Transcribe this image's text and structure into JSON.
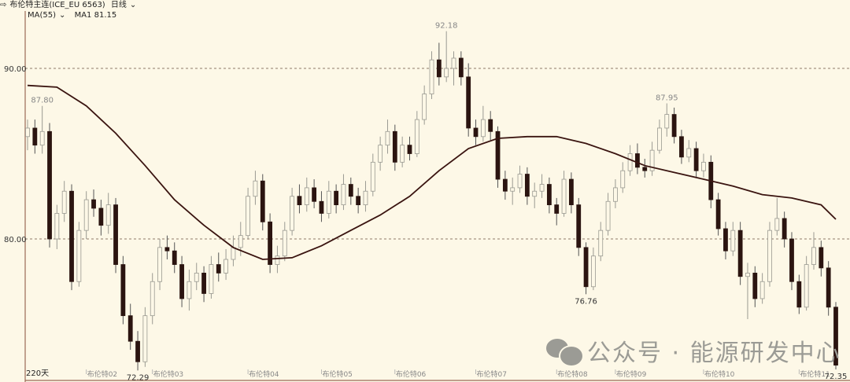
{
  "header": {
    "icon": "arrow-right-icon",
    "symbol": "布伦特主连(ICE_EU 6563)",
    "period": "日线",
    "period_icon": "chevron-down-icon"
  },
  "indicator": {
    "name": "MA(55)",
    "icon": "chevron-down-icon",
    "value_label": "MA1 81.15"
  },
  "watermark": {
    "icon": "wechat-icon",
    "text": "公众号 · 能源研发中心"
  },
  "colors": {
    "background": "#fdf8e7",
    "down": "#2b1410",
    "up_outline": "#9a9a92",
    "ma": "#3a1410",
    "axis": "#9a6a55",
    "grid": "#6b5040"
  },
  "chart_data": {
    "type": "candlestick",
    "period_label": "220天",
    "ylim": [
      71.8,
      93
    ],
    "y_ticks": [
      {
        "value": 90,
        "label": "90.00"
      },
      {
        "value": 80,
        "label": "80.00"
      }
    ],
    "grid": "dashed horizontal at y ticks",
    "x_ticks": [
      {
        "index": 8,
        "label": "布伦特02"
      },
      {
        "index": 17,
        "label": "布伦特03"
      },
      {
        "index": 30,
        "label": "布伦特04"
      },
      {
        "index": 40,
        "label": "布伦特05"
      },
      {
        "index": 50,
        "label": "布伦特06"
      },
      {
        "index": 61,
        "label": "布伦特07"
      },
      {
        "index": 72,
        "label": "布伦特08"
      },
      {
        "index": 80,
        "label": "布伦特09"
      },
      {
        "index": 92,
        "label": "布伦特10"
      },
      {
        "index": 105,
        "label": "布伦特11"
      }
    ],
    "annotations": [
      {
        "index": 2,
        "value": 87.8,
        "label": "87.80",
        "pos": "above"
      },
      {
        "index": 15,
        "value": 72.29,
        "label": "72.29",
        "pos": "below"
      },
      {
        "index": 57,
        "value": 92.18,
        "label": "92.18",
        "pos": "above"
      },
      {
        "index": 76,
        "value": 76.76,
        "label": "76.76",
        "pos": "below"
      },
      {
        "index": 87,
        "value": 87.95,
        "label": "87.95",
        "pos": "above"
      },
      {
        "index": 110,
        "value": 72.35,
        "label": "72.35",
        "pos": "below"
      }
    ],
    "ohlc": [
      [
        86.0,
        87.0,
        85.2,
        86.5
      ],
      [
        86.5,
        87.0,
        85.0,
        85.5
      ],
      [
        85.5,
        87.8,
        85.0,
        86.3
      ],
      [
        86.3,
        86.8,
        79.5,
        80.0
      ],
      [
        80.0,
        82.0,
        79.4,
        81.5
      ],
      [
        81.5,
        83.4,
        81.0,
        82.8
      ],
      [
        82.8,
        83.2,
        77.0,
        77.5
      ],
      [
        77.5,
        81.0,
        77.2,
        80.5
      ],
      [
        80.5,
        82.8,
        80.0,
        82.3
      ],
      [
        82.3,
        82.9,
        81.3,
        81.8
      ],
      [
        81.8,
        82.3,
        80.2,
        80.8
      ],
      [
        80.8,
        82.7,
        80.3,
        82.0
      ],
      [
        82.0,
        82.4,
        78.0,
        78.5
      ],
      [
        78.5,
        79.0,
        75.0,
        75.5
      ],
      [
        75.5,
        76.2,
        73.5,
        74.0
      ],
      [
        74.0,
        74.6,
        72.29,
        72.8
      ],
      [
        72.8,
        76.0,
        72.5,
        75.5
      ],
      [
        75.5,
        78.0,
        75.0,
        77.5
      ],
      [
        77.5,
        80.0,
        77.0,
        79.5
      ],
      [
        79.5,
        80.2,
        78.8,
        79.3
      ],
      [
        79.3,
        79.8,
        78.0,
        78.5
      ],
      [
        78.5,
        79.0,
        76.0,
        76.5
      ],
      [
        76.5,
        78.2,
        75.8,
        77.5
      ],
      [
        77.5,
        78.6,
        77.0,
        78.0
      ],
      [
        78.0,
        78.4,
        76.3,
        76.8
      ],
      [
        76.8,
        79.0,
        76.5,
        78.5
      ],
      [
        78.5,
        79.2,
        77.5,
        78.0
      ],
      [
        78.0,
        79.4,
        77.6,
        78.8
      ],
      [
        78.8,
        80.2,
        78.4,
        79.5
      ],
      [
        79.5,
        81.0,
        79.0,
        80.2
      ],
      [
        80.2,
        83.0,
        80.0,
        82.5
      ],
      [
        82.5,
        84.0,
        82.0,
        83.4
      ],
      [
        83.4,
        83.8,
        80.5,
        81.0
      ],
      [
        81.0,
        81.5,
        78.0,
        78.5
      ],
      [
        78.5,
        79.6,
        78.0,
        79.0
      ],
      [
        79.0,
        81.0,
        78.7,
        80.5
      ],
      [
        80.5,
        83.0,
        80.2,
        82.5
      ],
      [
        82.5,
        83.2,
        81.5,
        82.0
      ],
      [
        82.0,
        83.6,
        81.6,
        83.0
      ],
      [
        83.0,
        83.5,
        81.8,
        82.2
      ],
      [
        82.2,
        82.8,
        81.0,
        81.5
      ],
      [
        81.5,
        83.4,
        81.2,
        82.8
      ],
      [
        82.8,
        83.2,
        81.5,
        82.0
      ],
      [
        82.0,
        83.8,
        81.7,
        83.2
      ],
      [
        83.2,
        83.6,
        82.0,
        82.5
      ],
      [
        82.5,
        83.0,
        81.5,
        82.0
      ],
      [
        82.0,
        83.4,
        81.6,
        82.8
      ],
      [
        82.8,
        85.0,
        82.5,
        84.5
      ],
      [
        84.5,
        86.0,
        84.0,
        85.5
      ],
      [
        85.5,
        87.0,
        85.0,
        86.3
      ],
      [
        86.3,
        86.7,
        84.0,
        84.5
      ],
      [
        84.5,
        86.0,
        84.2,
        85.5
      ],
      [
        85.5,
        86.0,
        84.6,
        85.0
      ],
      [
        85.0,
        87.5,
        84.8,
        87.0
      ],
      [
        87.0,
        89.0,
        86.7,
        88.5
      ],
      [
        88.5,
        91.0,
        88.2,
        90.5
      ],
      [
        90.5,
        91.5,
        89.0,
        89.5
      ],
      [
        89.5,
        92.18,
        89.2,
        90.0
      ],
      [
        90.0,
        91.0,
        89.0,
        90.6
      ],
      [
        90.6,
        91.0,
        89.0,
        89.5
      ],
      [
        89.5,
        90.3,
        86.0,
        86.5
      ],
      [
        86.5,
        87.0,
        85.5,
        86.0
      ],
      [
        86.0,
        87.8,
        85.7,
        87.0
      ],
      [
        87.0,
        87.5,
        85.8,
        86.3
      ],
      [
        86.3,
        86.6,
        83.0,
        83.5
      ],
      [
        83.5,
        84.0,
        82.3,
        82.8
      ],
      [
        82.8,
        83.6,
        82.0,
        83.0
      ],
      [
        83.0,
        84.3,
        82.7,
        83.8
      ],
      [
        83.8,
        84.2,
        82.0,
        82.5
      ],
      [
        82.5,
        83.3,
        81.8,
        82.8
      ],
      [
        82.8,
        83.8,
        82.4,
        83.2
      ],
      [
        83.2,
        83.6,
        81.5,
        82.0
      ],
      [
        82.0,
        82.4,
        80.8,
        81.5
      ],
      [
        81.5,
        84.0,
        81.3,
        83.5
      ],
      [
        83.5,
        83.9,
        81.5,
        82.0
      ],
      [
        82.0,
        82.4,
        79.0,
        79.5
      ],
      [
        79.5,
        79.8,
        76.76,
        77.2
      ],
      [
        77.2,
        79.5,
        77.0,
        79.0
      ],
      [
        79.0,
        81.0,
        78.7,
        80.5
      ],
      [
        80.5,
        82.7,
        80.2,
        82.2
      ],
      [
        82.2,
        83.5,
        81.8,
        83.0
      ],
      [
        83.0,
        84.5,
        82.7,
        84.0
      ],
      [
        84.0,
        85.5,
        83.7,
        85.0
      ],
      [
        85.0,
        85.6,
        83.8,
        84.2
      ],
      [
        84.2,
        84.7,
        83.6,
        84.0
      ],
      [
        84.0,
        85.7,
        83.7,
        85.2
      ],
      [
        85.2,
        87.0,
        85.0,
        86.5
      ],
      [
        86.5,
        87.95,
        86.0,
        87.3
      ],
      [
        87.3,
        87.7,
        85.6,
        86.0
      ],
      [
        86.0,
        86.4,
        84.4,
        84.8
      ],
      [
        84.8,
        85.8,
        84.5,
        85.3
      ],
      [
        85.3,
        85.7,
        83.6,
        84.0
      ],
      [
        84.0,
        85.0,
        83.6,
        84.5
      ],
      [
        84.5,
        84.9,
        81.8,
        82.3
      ],
      [
        82.3,
        82.7,
        80.2,
        80.6
      ],
      [
        80.6,
        81.0,
        78.8,
        79.3
      ],
      [
        79.3,
        81.0,
        79.0,
        80.5
      ],
      [
        80.5,
        81.0,
        77.3,
        77.8
      ],
      [
        77.8,
        78.6,
        75.3,
        78.0
      ],
      [
        78.0,
        78.4,
        76.0,
        76.5
      ],
      [
        76.5,
        78.0,
        76.2,
        77.5
      ],
      [
        77.5,
        81.0,
        77.2,
        80.5
      ],
      [
        80.5,
        82.4,
        80.2,
        81.2
      ],
      [
        81.2,
        81.6,
        79.5,
        80.0
      ],
      [
        80.0,
        80.4,
        77.0,
        77.5
      ],
      [
        77.5,
        77.9,
        75.6,
        76.0
      ],
      [
        76.0,
        79.0,
        75.8,
        78.5
      ],
      [
        78.5,
        80.4,
        78.2,
        79.5
      ],
      [
        79.5,
        79.9,
        77.8,
        78.3
      ],
      [
        78.3,
        78.7,
        75.5,
        76.0
      ],
      [
        76.0,
        76.3,
        72.35,
        72.6
      ]
    ],
    "ma55": {
      "name": "MA1",
      "sample_every": 4,
      "values": [
        89.0,
        88.9,
        87.8,
        86.2,
        84.3,
        82.3,
        80.8,
        79.5,
        78.8,
        78.9,
        79.6,
        80.5,
        81.4,
        82.5,
        84.0,
        85.3,
        85.9,
        86.0,
        86.0,
        85.6,
        85.0,
        84.3,
        83.9,
        83.5,
        83.1,
        82.6,
        82.4,
        82.0,
        81.15
      ]
    }
  }
}
